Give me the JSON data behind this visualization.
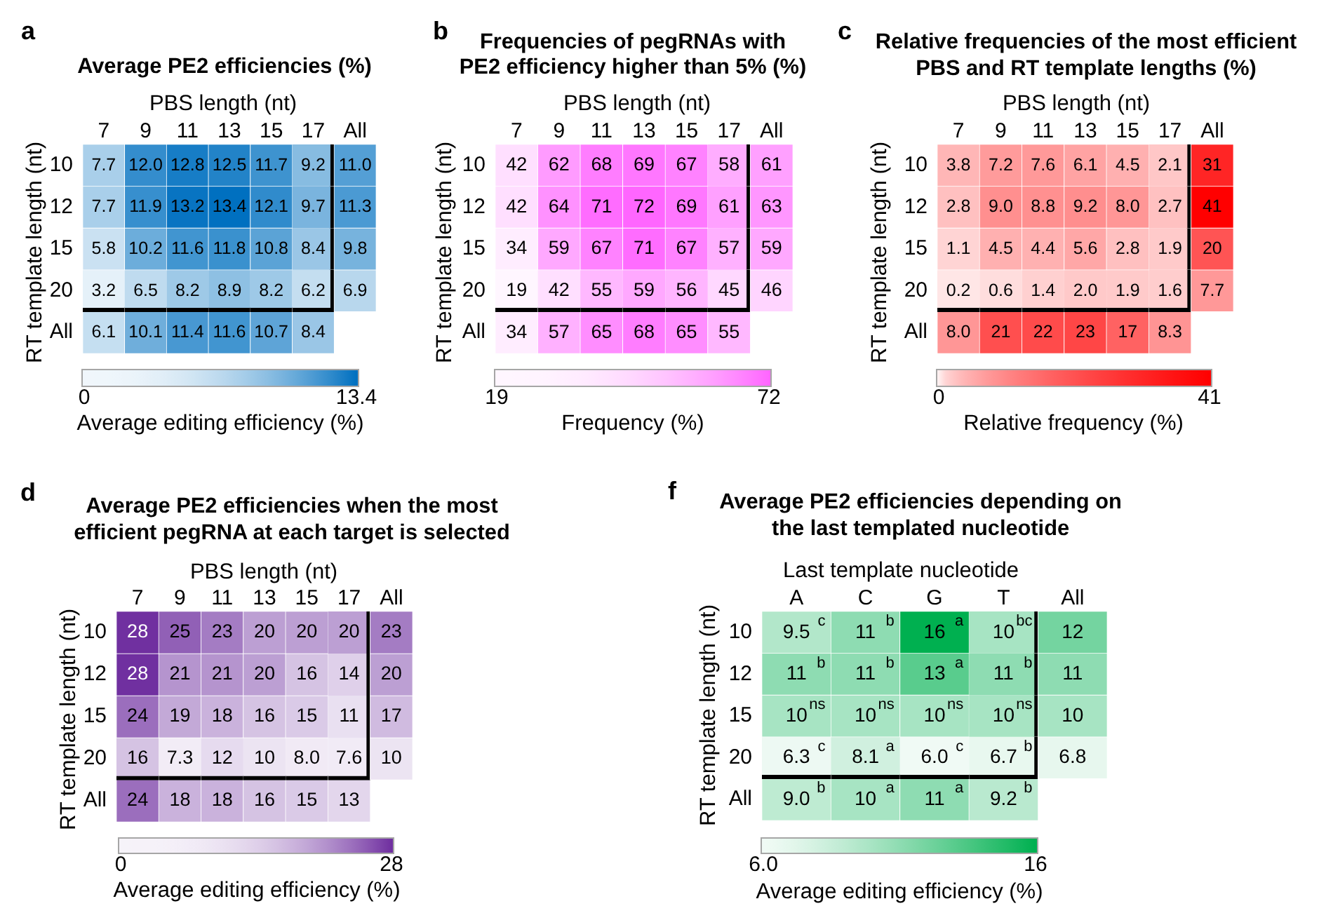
{
  "chart_data": [
    {
      "type": "heatmap",
      "title": "Average PE2 efficiencies (%)",
      "xlabel": "PBS length (nt)",
      "ylabel": "RT template length (nt)",
      "annotations": [
        "a"
      ],
      "categories": [
        "7",
        "9",
        "11",
        "13",
        "15",
        "17",
        "All"
      ],
      "y_categories": [
        "10",
        "12",
        "15",
        "20",
        "All"
      ],
      "cells": [
        [
          7.7,
          12.0,
          12.8,
          12.5,
          11.7,
          9.2,
          11.0
        ],
        [
          7.7,
          11.9,
          13.2,
          13.4,
          12.1,
          9.7,
          11.3
        ],
        [
          5.8,
          10.2,
          11.6,
          11.8,
          10.8,
          8.4,
          9.8
        ],
        [
          3.2,
          6.5,
          8.2,
          8.9,
          8.2,
          6.2,
          6.9
        ],
        [
          6.1,
          10.1,
          11.4,
          11.6,
          10.7,
          8.4,
          null
        ]
      ],
      "cell_labels": [
        [
          "7.7",
          "12.0",
          "12.8",
          "12.5",
          "11.7",
          "9.2",
          "11.0"
        ],
        [
          "7.7",
          "11.9",
          "13.2",
          "13.4",
          "12.1",
          "9.7",
          "11.3"
        ],
        [
          "5.8",
          "10.2",
          "11.6",
          "11.8",
          "10.8",
          "8.4",
          "9.8"
        ],
        [
          "3.2",
          "6.5",
          "8.2",
          "8.9",
          "8.2",
          "6.2",
          "6.9"
        ],
        [
          "6.1",
          "10.1",
          "11.4",
          "11.6",
          "10.7",
          "8.4",
          null
        ]
      ],
      "color": "#0070c0",
      "clabel": "Average editing efficiency (%)",
      "clim": [
        0,
        13.4
      ],
      "cticks": [
        0,
        13.4
      ]
    },
    {
      "type": "heatmap",
      "title": "Frequencies of pegRNAs with\nPE2 efficiency higher than 5% (%)",
      "xlabel": "PBS length (nt)",
      "ylabel": "RT template length (nt)",
      "annotations": [
        "b"
      ],
      "categories": [
        "7",
        "9",
        "11",
        "13",
        "15",
        "17",
        "All"
      ],
      "y_categories": [
        "10",
        "12",
        "15",
        "20",
        "All"
      ],
      "cells": [
        [
          42,
          62,
          68,
          69,
          67,
          58,
          61
        ],
        [
          42,
          64,
          71,
          72,
          69,
          61,
          63
        ],
        [
          34,
          59,
          67,
          71,
          67,
          57,
          59
        ],
        [
          19,
          42,
          55,
          59,
          56,
          45,
          46
        ],
        [
          34,
          57,
          65,
          68,
          65,
          55,
          null
        ]
      ],
      "data_labels": true,
      "color": "#ff66ff",
      "clabel": "Frequency (%)",
      "clim": [
        19,
        72
      ],
      "cticks": [
        19,
        72
      ]
    },
    {
      "type": "heatmap",
      "title": "Relative frequencies of the most efficient\nPBS and RT template lengths (%)",
      "xlabel": "PBS length (nt)",
      "ylabel": "RT template length (nt)",
      "annotations": [
        "c"
      ],
      "categories": [
        "7",
        "9",
        "11",
        "13",
        "15",
        "17",
        "All"
      ],
      "y_categories": [
        "10",
        "12",
        "15",
        "20",
        "All"
      ],
      "cells": [
        [
          3.8,
          7.2,
          7.6,
          6.1,
          4.5,
          2.1,
          31
        ],
        [
          2.8,
          9.0,
          8.8,
          9.2,
          8.0,
          2.7,
          41
        ],
        [
          1.1,
          4.5,
          4.4,
          5.6,
          2.8,
          1.9,
          20
        ],
        [
          0.2,
          0.6,
          1.4,
          2.0,
          1.9,
          1.6,
          7.7
        ],
        [
          8.0,
          21,
          22,
          23,
          17,
          8.3,
          null
        ]
      ],
      "cell_labels": [
        [
          "3.8",
          "7.2",
          "7.6",
          "6.1",
          "4.5",
          "2.1",
          "31"
        ],
        [
          "2.8",
          "9.0",
          "8.8",
          "9.2",
          "8.0",
          "2.7",
          "41"
        ],
        [
          "1.1",
          "4.5",
          "4.4",
          "5.6",
          "2.8",
          "1.9",
          "20"
        ],
        [
          "0.2",
          "0.6",
          "1.4",
          "2.0",
          "1.9",
          "1.6",
          "7.7"
        ],
        [
          "8.0",
          "21",
          "22",
          "23",
          "17",
          "8.3",
          null
        ]
      ],
      "color": "#ff0000",
      "clabel": "Relative frequency (%)",
      "clim": [
        0,
        41
      ],
      "cticks": [
        0,
        41
      ]
    },
    {
      "type": "heatmap",
      "title": "Average PE2 efficiencies when the most\nefficient pegRNA at each target is selected",
      "xlabel": "PBS length (nt)",
      "ylabel": "RT template length (nt)",
      "annotations": [
        "d"
      ],
      "categories": [
        "7",
        "9",
        "11",
        "13",
        "15",
        "17",
        "All"
      ],
      "y_categories": [
        "10",
        "12",
        "15",
        "20",
        "All"
      ],
      "cells": [
        [
          28,
          25,
          23,
          20,
          20,
          20,
          23
        ],
        [
          28,
          21,
          21,
          20,
          16,
          14,
          20
        ],
        [
          24,
          19,
          18,
          16,
          15,
          11,
          17
        ],
        [
          16,
          7.3,
          12,
          10,
          8.0,
          7.6,
          10
        ],
        [
          24,
          18,
          18,
          16,
          15,
          13,
          null
        ]
      ],
      "cell_labels": [
        [
          "28",
          "25",
          "23",
          "20",
          "20",
          "20",
          "23"
        ],
        [
          "28",
          "21",
          "21",
          "20",
          "16",
          "14",
          "20"
        ],
        [
          "24",
          "19",
          "18",
          "16",
          "15",
          "11",
          "17"
        ],
        [
          "16",
          "7.3",
          "12",
          "10",
          "8.0",
          "7.6",
          "10"
        ],
        [
          "24",
          "18",
          "18",
          "16",
          "15",
          "13",
          null
        ]
      ],
      "color": "#7030a0",
      "clabel": "Average editing efficiency (%)",
      "clim": [
        0,
        28
      ],
      "cticks": [
        0,
        28
      ]
    },
    {
      "type": "heatmap",
      "title": "Average PE2 efficiencies depending on\nthe last templated nucleotide",
      "xlabel": "Last template nucleotide",
      "ylabel": "RT template length (nt)",
      "annotations": [
        "f"
      ],
      "categories": [
        "A",
        "C",
        "G",
        "T",
        "All"
      ],
      "y_categories": [
        "10",
        "12",
        "15",
        "20",
        "All"
      ],
      "cells": [
        [
          9.5,
          11,
          16,
          10,
          12
        ],
        [
          11,
          11,
          13,
          11,
          11
        ],
        [
          10,
          10,
          10,
          10,
          10
        ],
        [
          6.3,
          8.1,
          6.0,
          6.7,
          6.8
        ],
        [
          9.0,
          10,
          11,
          9.2,
          null
        ]
      ],
      "cell_labels": [
        [
          "9.5$^{c}$",
          "11$^{b}$",
          "16$^{a}$",
          "10$^{bc}$",
          "12"
        ],
        [
          "11$^{b}$",
          "11$^{b}$",
          "13$^{a}$",
          "11$^{b}$",
          "11"
        ],
        [
          "10$^{ns}$",
          "10$^{ns}$",
          "10$^{ns}$",
          "10$^{ns}$",
          "10"
        ],
        [
          "6.3$^{c}$",
          "8.1$^{a}$",
          "6.0$^{c}$",
          "6.7$^{b}$",
          "6.8"
        ],
        [
          "9.0$^{b}$",
          "10$^{a}$",
          "11$^{a}$",
          "9.2$^{b}$",
          null
        ]
      ],
      "color": "#00b050",
      "clabel": "Average editing efficiency (%)",
      "clim": [
        6,
        16
      ],
      "cticks": [
        {
          "value": 6,
          "label": "6.0"
        },
        16
      ]
    }
  ]
}
